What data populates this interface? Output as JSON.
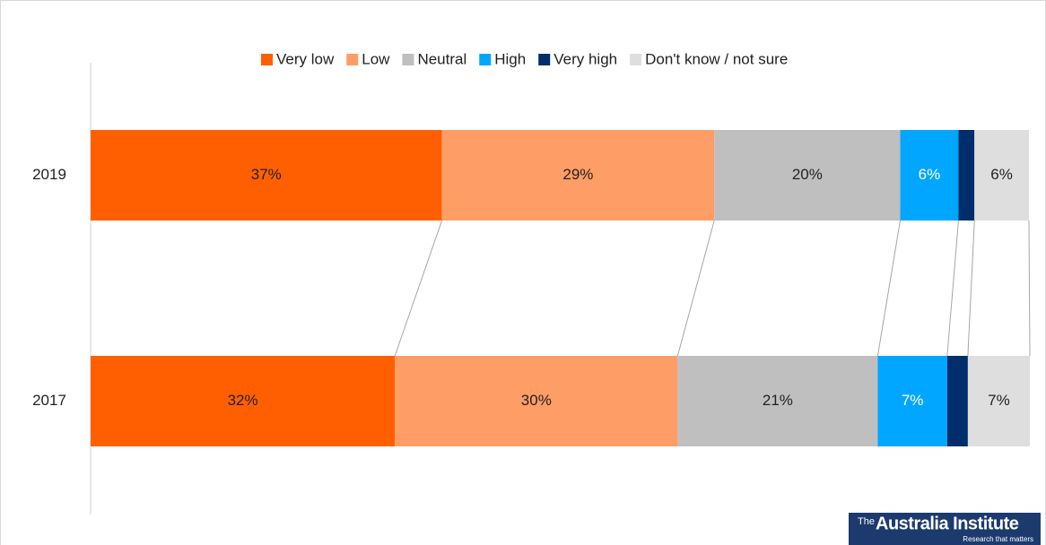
{
  "chart_data": {
    "type": "stacked-bar-horizontal",
    "categories": [
      "2019",
      "2017"
    ],
    "xlim": [
      0,
      100
    ],
    "series": [
      {
        "name": "Very low",
        "color": "#ff5f00",
        "label_color": "#222222",
        "values": [
          37.4,
          32.4
        ],
        "value_labels": [
          "37%",
          "32%"
        ]
      },
      {
        "name": "Low",
        "color": "#ff9d66",
        "label_color": "#222222",
        "values": [
          29.0,
          30.1
        ],
        "value_labels": [
          "29%",
          "30%"
        ]
      },
      {
        "name": "Neutral",
        "color": "#bfbfbf",
        "label_color": "#222222",
        "values": [
          19.8,
          21.3
        ],
        "value_labels": [
          "20%",
          "21%"
        ]
      },
      {
        "name": "High",
        "color": "#00a6ff",
        "label_color": "#ffffff",
        "values": [
          6.2,
          7.4
        ],
        "value_labels": [
          "6%",
          "7%"
        ]
      },
      {
        "name": "Very high",
        "color": "#002d6b",
        "label_color": "#222222",
        "values": [
          1.7,
          2.2
        ]
      },
      {
        "name": "Don't know / not sure",
        "color": "#dedede",
        "label_color": "#222222",
        "values": [
          5.8,
          6.6
        ],
        "value_labels": [
          "6%",
          "7%"
        ]
      }
    ],
    "legend": "top"
  },
  "logo": {
    "prefix": "The",
    "name": "Australia Institute",
    "tagline": "Research that matters"
  }
}
